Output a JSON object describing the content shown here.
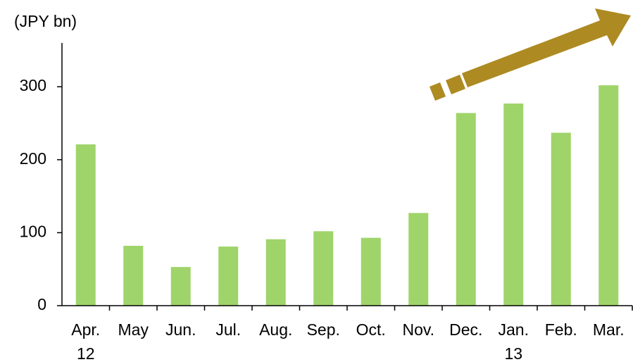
{
  "chart_data": {
    "type": "bar",
    "y_axis_label": "(JPY bn)",
    "categories": [
      "Apr.",
      "May",
      "Jun.",
      "Jul.",
      "Aug.",
      "Sep.",
      "Oct.",
      "Nov.",
      "Dec.",
      "Jan.",
      "Feb.",
      "Mar."
    ],
    "years": {
      "0": "12",
      "9": "13"
    },
    "values": [
      221,
      82,
      53,
      81,
      91,
      102,
      93,
      127,
      264,
      277,
      237,
      302
    ],
    "color": "#9fd46a",
    "ylim": [
      0,
      360
    ],
    "yticks": [
      0,
      100,
      200,
      300
    ]
  }
}
